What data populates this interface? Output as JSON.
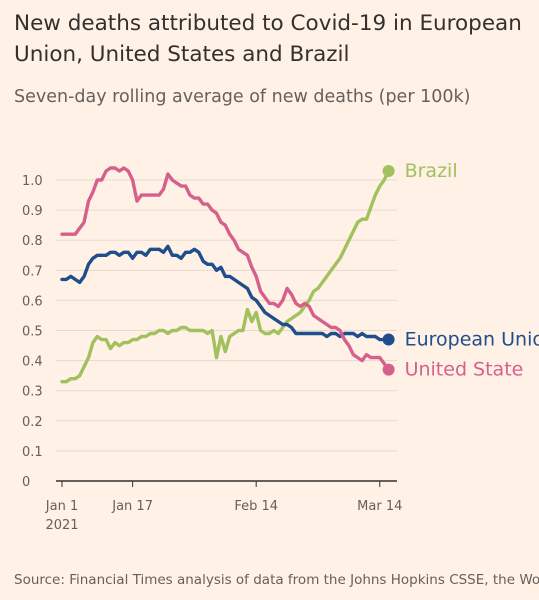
{
  "title": "New deaths attributed to Covid-19 in European Union, United States and Brazil",
  "subtitle": "Seven-day rolling average of new deaths (per 100k)",
  "source": "Source: Financial Times analysis of data from the Johns Hopkins CSSE, the World Health Organization, the UK Government",
  "chart_data": {
    "type": "line",
    "title": "New deaths attributed to Covid-19 in European Union, United States and Brazil",
    "subtitle": "Seven-day rolling average of new deaths (per 100k)",
    "xlabel": "",
    "ylabel": "",
    "x_start": "2021-01-01",
    "x_end": "2021-03-17",
    "ylim": [
      0,
      1.05
    ],
    "y_ticks": [
      0,
      0.1,
      0.2,
      0.3,
      0.4,
      0.5,
      0.6,
      0.7,
      0.8,
      0.9,
      1.0
    ],
    "y_tick_labels": [
      "0",
      "0.1",
      "0.2",
      "0.3",
      "0.4",
      "0.5",
      "0.6",
      "0.7",
      "0.8",
      "0.9",
      "1.0"
    ],
    "x_ticks": [
      {
        "date": "2021-01-01",
        "label": "Jan 1",
        "sublabel": "2021"
      },
      {
        "date": "2021-01-17",
        "label": "Jan 17",
        "sublabel": ""
      },
      {
        "date": "2021-02-14",
        "label": "Feb 14",
        "sublabel": ""
      },
      {
        "date": "2021-03-14",
        "label": "Mar 14",
        "sublabel": ""
      }
    ],
    "grid": "horizontal",
    "legend": "direct labels at line ends",
    "series": [
      {
        "name": "Brazil",
        "color": "#a0c15e",
        "values": [
          [
            "2021-01-01",
            0.33
          ],
          [
            "2021-01-02",
            0.33
          ],
          [
            "2021-01-03",
            0.34
          ],
          [
            "2021-01-04",
            0.34
          ],
          [
            "2021-01-05",
            0.35
          ],
          [
            "2021-01-06",
            0.38
          ],
          [
            "2021-01-07",
            0.41
          ],
          [
            "2021-01-08",
            0.46
          ],
          [
            "2021-01-09",
            0.48
          ],
          [
            "2021-01-10",
            0.47
          ],
          [
            "2021-01-11",
            0.47
          ],
          [
            "2021-01-12",
            0.44
          ],
          [
            "2021-01-13",
            0.46
          ],
          [
            "2021-01-14",
            0.45
          ],
          [
            "2021-01-15",
            0.46
          ],
          [
            "2021-01-16",
            0.46
          ],
          [
            "2021-01-17",
            0.47
          ],
          [
            "2021-01-18",
            0.47
          ],
          [
            "2021-01-19",
            0.48
          ],
          [
            "2021-01-20",
            0.48
          ],
          [
            "2021-01-21",
            0.49
          ],
          [
            "2021-01-22",
            0.49
          ],
          [
            "2021-01-23",
            0.5
          ],
          [
            "2021-01-24",
            0.5
          ],
          [
            "2021-01-25",
            0.49
          ],
          [
            "2021-01-26",
            0.5
          ],
          [
            "2021-01-27",
            0.5
          ],
          [
            "2021-01-28",
            0.51
          ],
          [
            "2021-01-29",
            0.51
          ],
          [
            "2021-01-30",
            0.5
          ],
          [
            "2021-01-31",
            0.5
          ],
          [
            "2021-02-01",
            0.5
          ],
          [
            "2021-02-02",
            0.5
          ],
          [
            "2021-02-03",
            0.49
          ],
          [
            "2021-02-04",
            0.5
          ],
          [
            "2021-02-05",
            0.41
          ],
          [
            "2021-02-06",
            0.48
          ],
          [
            "2021-02-07",
            0.43
          ],
          [
            "2021-02-08",
            0.48
          ],
          [
            "2021-02-09",
            0.49
          ],
          [
            "2021-02-10",
            0.5
          ],
          [
            "2021-02-11",
            0.5
          ],
          [
            "2021-02-12",
            0.57
          ],
          [
            "2021-02-13",
            0.53
          ],
          [
            "2021-02-14",
            0.56
          ],
          [
            "2021-02-15",
            0.5
          ],
          [
            "2021-02-16",
            0.49
          ],
          [
            "2021-02-17",
            0.49
          ],
          [
            "2021-02-18",
            0.5
          ],
          [
            "2021-02-19",
            0.49
          ],
          [
            "2021-02-20",
            0.51
          ],
          [
            "2021-02-21",
            0.53
          ],
          [
            "2021-02-22",
            0.54
          ],
          [
            "2021-02-23",
            0.55
          ],
          [
            "2021-02-24",
            0.56
          ],
          [
            "2021-02-25",
            0.58
          ],
          [
            "2021-02-26",
            0.6
          ],
          [
            "2021-02-27",
            0.63
          ],
          [
            "2021-02-28",
            0.64
          ],
          [
            "2021-03-01",
            0.66
          ],
          [
            "2021-03-02",
            0.68
          ],
          [
            "2021-03-03",
            0.7
          ],
          [
            "2021-03-04",
            0.72
          ],
          [
            "2021-03-05",
            0.74
          ],
          [
            "2021-03-06",
            0.77
          ],
          [
            "2021-03-07",
            0.8
          ],
          [
            "2021-03-08",
            0.83
          ],
          [
            "2021-03-09",
            0.86
          ],
          [
            "2021-03-10",
            0.87
          ],
          [
            "2021-03-11",
            0.87
          ],
          [
            "2021-03-12",
            0.91
          ],
          [
            "2021-03-13",
            0.95
          ],
          [
            "2021-03-14",
            0.98
          ],
          [
            "2021-03-15",
            1.0
          ],
          [
            "2021-03-16",
            1.03
          ]
        ]
      },
      {
        "name": "European Union",
        "display_label": "European Unio",
        "color": "#1f4e8c",
        "values": [
          [
            "2021-01-01",
            0.67
          ],
          [
            "2021-01-02",
            0.67
          ],
          [
            "2021-01-03",
            0.68
          ],
          [
            "2021-01-04",
            0.67
          ],
          [
            "2021-01-05",
            0.66
          ],
          [
            "2021-01-06",
            0.68
          ],
          [
            "2021-01-07",
            0.72
          ],
          [
            "2021-01-08",
            0.74
          ],
          [
            "2021-01-09",
            0.75
          ],
          [
            "2021-01-10",
            0.75
          ],
          [
            "2021-01-11",
            0.75
          ],
          [
            "2021-01-12",
            0.76
          ],
          [
            "2021-01-13",
            0.76
          ],
          [
            "2021-01-14",
            0.75
          ],
          [
            "2021-01-15",
            0.76
          ],
          [
            "2021-01-16",
            0.76
          ],
          [
            "2021-01-17",
            0.74
          ],
          [
            "2021-01-18",
            0.76
          ],
          [
            "2021-01-19",
            0.76
          ],
          [
            "2021-01-20",
            0.75
          ],
          [
            "2021-01-21",
            0.77
          ],
          [
            "2021-01-22",
            0.77
          ],
          [
            "2021-01-23",
            0.77
          ],
          [
            "2021-01-24",
            0.76
          ],
          [
            "2021-01-25",
            0.78
          ],
          [
            "2021-01-26",
            0.75
          ],
          [
            "2021-01-27",
            0.75
          ],
          [
            "2021-01-28",
            0.74
          ],
          [
            "2021-01-29",
            0.76
          ],
          [
            "2021-01-30",
            0.76
          ],
          [
            "2021-01-31",
            0.77
          ],
          [
            "2021-02-01",
            0.76
          ],
          [
            "2021-02-02",
            0.73
          ],
          [
            "2021-02-03",
            0.72
          ],
          [
            "2021-02-04",
            0.72
          ],
          [
            "2021-02-05",
            0.7
          ],
          [
            "2021-02-06",
            0.71
          ],
          [
            "2021-02-07",
            0.68
          ],
          [
            "2021-02-08",
            0.68
          ],
          [
            "2021-02-09",
            0.67
          ],
          [
            "2021-02-10",
            0.66
          ],
          [
            "2021-02-11",
            0.65
          ],
          [
            "2021-02-12",
            0.64
          ],
          [
            "2021-02-13",
            0.61
          ],
          [
            "2021-02-14",
            0.6
          ],
          [
            "2021-02-15",
            0.58
          ],
          [
            "2021-02-16",
            0.56
          ],
          [
            "2021-02-17",
            0.55
          ],
          [
            "2021-02-18",
            0.54
          ],
          [
            "2021-02-19",
            0.53
          ],
          [
            "2021-02-20",
            0.52
          ],
          [
            "2021-02-21",
            0.52
          ],
          [
            "2021-02-22",
            0.51
          ],
          [
            "2021-02-23",
            0.49
          ],
          [
            "2021-02-24",
            0.49
          ],
          [
            "2021-02-25",
            0.49
          ],
          [
            "2021-02-26",
            0.49
          ],
          [
            "2021-02-27",
            0.49
          ],
          [
            "2021-02-28",
            0.49
          ],
          [
            "2021-03-01",
            0.49
          ],
          [
            "2021-03-02",
            0.48
          ],
          [
            "2021-03-03",
            0.49
          ],
          [
            "2021-03-04",
            0.49
          ],
          [
            "2021-03-05",
            0.48
          ],
          [
            "2021-03-06",
            0.49
          ],
          [
            "2021-03-07",
            0.49
          ],
          [
            "2021-03-08",
            0.49
          ],
          [
            "2021-03-09",
            0.48
          ],
          [
            "2021-03-10",
            0.49
          ],
          [
            "2021-03-11",
            0.48
          ],
          [
            "2021-03-12",
            0.48
          ],
          [
            "2021-03-13",
            0.48
          ],
          [
            "2021-03-14",
            0.47
          ],
          [
            "2021-03-15",
            0.47
          ],
          [
            "2021-03-16",
            0.47
          ]
        ]
      },
      {
        "name": "United States",
        "display_label": "United State",
        "color": "#d6608c",
        "values": [
          [
            "2021-01-01",
            0.82
          ],
          [
            "2021-01-02",
            0.82
          ],
          [
            "2021-01-03",
            0.82
          ],
          [
            "2021-01-04",
            0.82
          ],
          [
            "2021-01-05",
            0.84
          ],
          [
            "2021-01-06",
            0.86
          ],
          [
            "2021-01-07",
            0.93
          ],
          [
            "2021-01-08",
            0.96
          ],
          [
            "2021-01-09",
            1.0
          ],
          [
            "2021-01-10",
            1.0
          ],
          [
            "2021-01-11",
            1.03
          ],
          [
            "2021-01-12",
            1.04
          ],
          [
            "2021-01-13",
            1.04
          ],
          [
            "2021-01-14",
            1.03
          ],
          [
            "2021-01-15",
            1.04
          ],
          [
            "2021-01-16",
            1.03
          ],
          [
            "2021-01-17",
            1.0
          ],
          [
            "2021-01-18",
            0.93
          ],
          [
            "2021-01-19",
            0.95
          ],
          [
            "2021-01-20",
            0.95
          ],
          [
            "2021-01-21",
            0.95
          ],
          [
            "2021-01-22",
            0.95
          ],
          [
            "2021-01-23",
            0.95
          ],
          [
            "2021-01-24",
            0.97
          ],
          [
            "2021-01-25",
            1.02
          ],
          [
            "2021-01-26",
            1.0
          ],
          [
            "2021-01-27",
            0.99
          ],
          [
            "2021-01-28",
            0.98
          ],
          [
            "2021-01-29",
            0.98
          ],
          [
            "2021-01-30",
            0.95
          ],
          [
            "2021-01-31",
            0.94
          ],
          [
            "2021-02-01",
            0.94
          ],
          [
            "2021-02-02",
            0.92
          ],
          [
            "2021-02-03",
            0.92
          ],
          [
            "2021-02-04",
            0.9
          ],
          [
            "2021-02-05",
            0.89
          ],
          [
            "2021-02-06",
            0.86
          ],
          [
            "2021-02-07",
            0.85
          ],
          [
            "2021-02-08",
            0.82
          ],
          [
            "2021-02-09",
            0.8
          ],
          [
            "2021-02-10",
            0.77
          ],
          [
            "2021-02-11",
            0.76
          ],
          [
            "2021-02-12",
            0.75
          ],
          [
            "2021-02-13",
            0.71
          ],
          [
            "2021-02-14",
            0.68
          ],
          [
            "2021-02-15",
            0.63
          ],
          [
            "2021-02-16",
            0.61
          ],
          [
            "2021-02-17",
            0.59
          ],
          [
            "2021-02-18",
            0.59
          ],
          [
            "2021-02-19",
            0.58
          ],
          [
            "2021-02-20",
            0.6
          ],
          [
            "2021-02-21",
            0.64
          ],
          [
            "2021-02-22",
            0.62
          ],
          [
            "2021-02-23",
            0.59
          ],
          [
            "2021-02-24",
            0.58
          ],
          [
            "2021-02-25",
            0.59
          ],
          [
            "2021-02-26",
            0.58
          ],
          [
            "2021-02-27",
            0.55
          ],
          [
            "2021-02-28",
            0.54
          ],
          [
            "2021-03-01",
            0.53
          ],
          [
            "2021-03-02",
            0.52
          ],
          [
            "2021-03-03",
            0.51
          ],
          [
            "2021-03-04",
            0.51
          ],
          [
            "2021-03-05",
            0.5
          ],
          [
            "2021-03-06",
            0.47
          ],
          [
            "2021-03-07",
            0.45
          ],
          [
            "2021-03-08",
            0.42
          ],
          [
            "2021-03-09",
            0.41
          ],
          [
            "2021-03-10",
            0.4
          ],
          [
            "2021-03-11",
            0.42
          ],
          [
            "2021-03-12",
            0.41
          ],
          [
            "2021-03-13",
            0.41
          ],
          [
            "2021-03-14",
            0.41
          ],
          [
            "2021-03-15",
            0.39
          ],
          [
            "2021-03-16",
            0.37
          ]
        ]
      }
    ]
  }
}
